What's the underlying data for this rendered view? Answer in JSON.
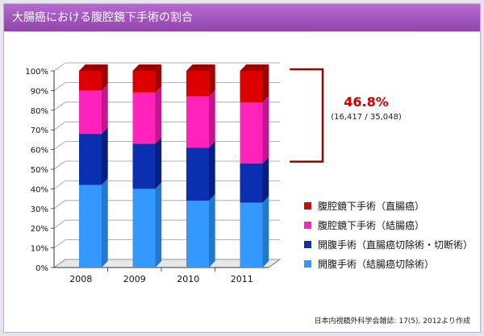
{
  "header": {
    "title": "大腸癌における腹腔鏡下手術の割合"
  },
  "caption": "日本内視鏡外科学会雑誌: 17(5), 2012より作成",
  "highlight": {
    "percent": "46.8%",
    "ratio": "(16,417 / 35,048)",
    "color": "#cc0000"
  },
  "chart_data": {
    "type": "bar",
    "stacked": true,
    "three_d": true,
    "categories": [
      "2008",
      "2009",
      "2010",
      "2011"
    ],
    "yticks": [
      "0%",
      "10%",
      "20%",
      "30%",
      "40%",
      "50%",
      "60%",
      "70%",
      "80%",
      "90%",
      "100%"
    ],
    "ylim": [
      0,
      100
    ],
    "series": [
      {
        "name": "開腹手術（結腸癌切除術）",
        "color": "#3399ff",
        "side_color": "#2577c9",
        "values": [
          42,
          40,
          34,
          33
        ]
      },
      {
        "name": "開腹手術（直腸癌切除術・切断術）",
        "color": "#0a2fb0",
        "side_color": "#061f7c",
        "values": [
          26,
          23,
          27,
          20
        ]
      },
      {
        "name": "腹腔鏡下手術（結腸癌）",
        "color": "#ff22bb",
        "side_color": "#c3158c",
        "values": [
          22,
          26,
          26,
          31
        ]
      },
      {
        "name": "腹腔鏡下手術（直腸癌）",
        "color": "#dd0000",
        "side_color": "#9e0000",
        "values": [
          10,
          11,
          13,
          16
        ]
      }
    ],
    "legend_order": [
      3,
      2,
      1,
      0
    ],
    "legend_position": "right",
    "bracket_series": [
      2,
      3
    ],
    "bracket_category": 3
  }
}
